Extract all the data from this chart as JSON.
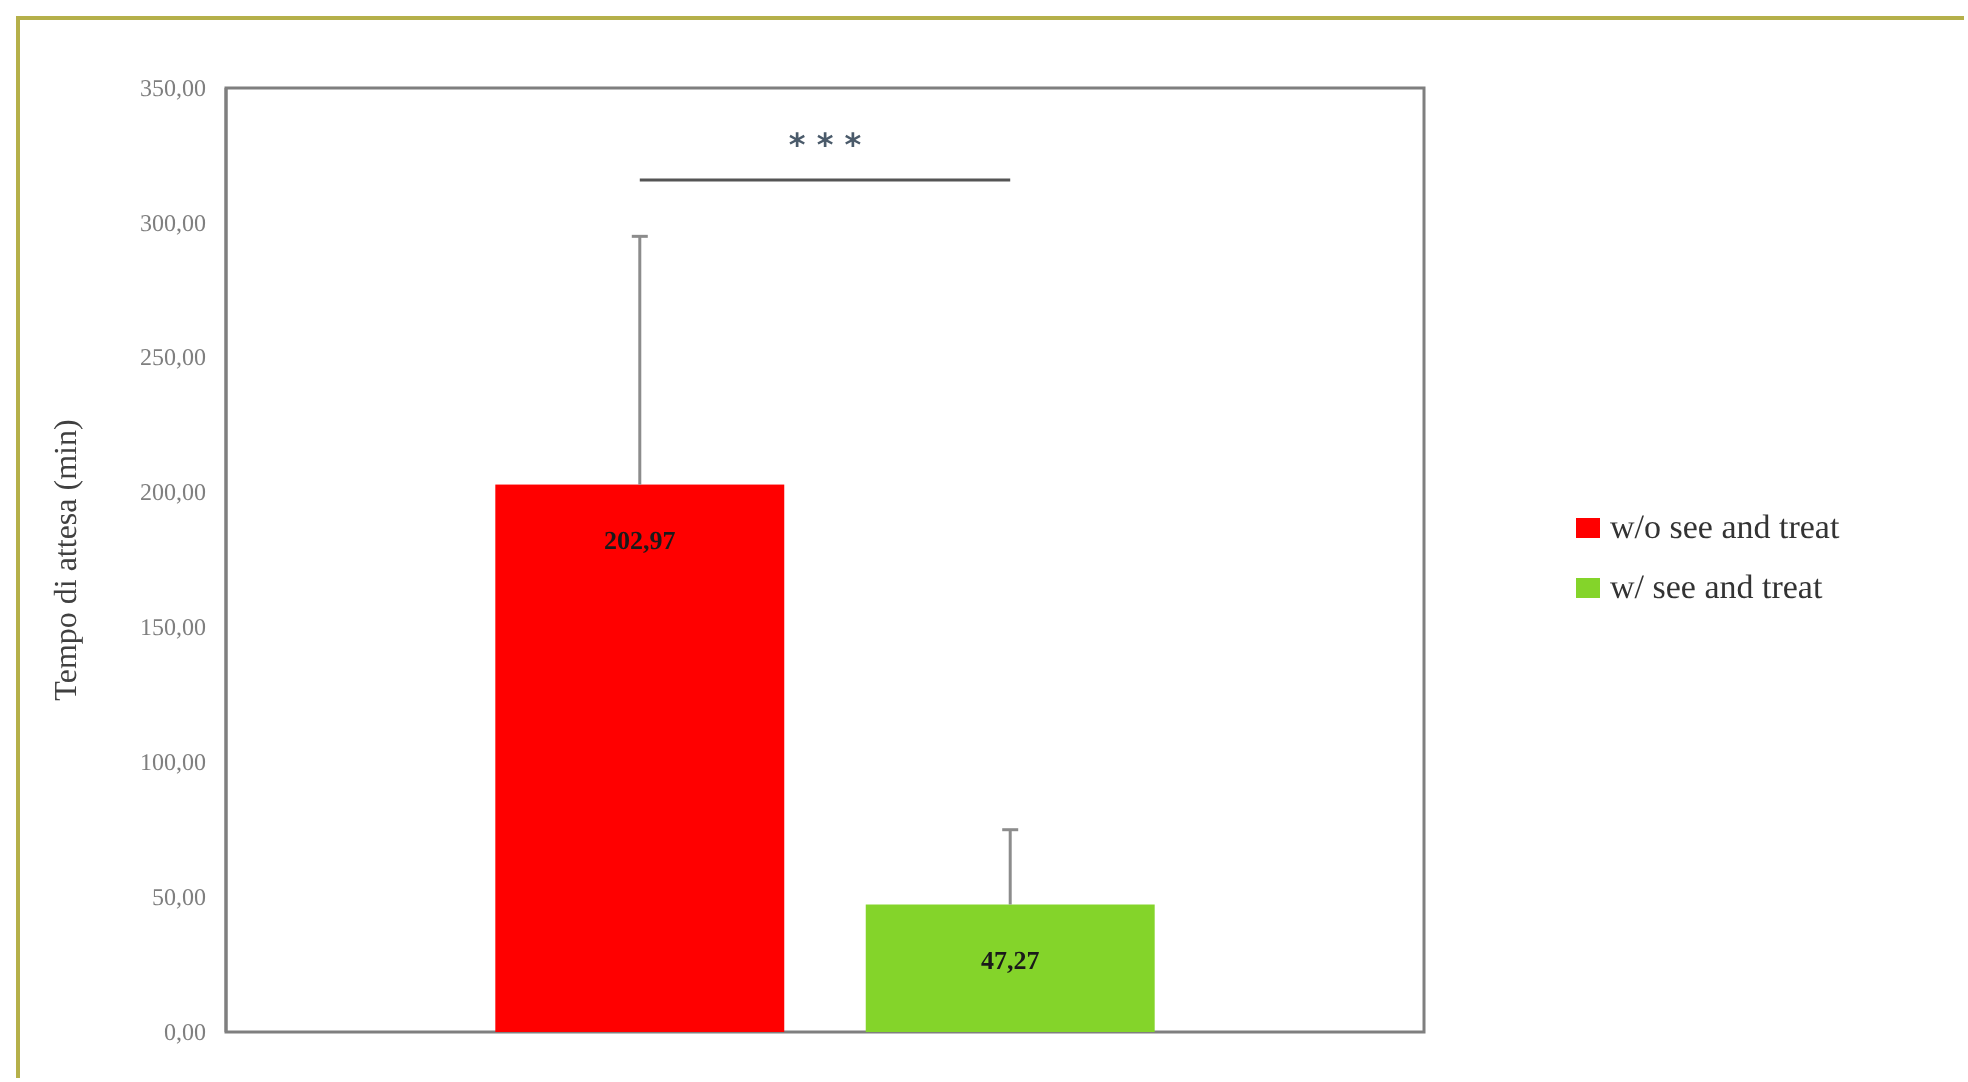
{
  "chart_data": {
    "type": "bar",
    "ylabel": "Tempo di attesa (min)",
    "categories": [
      null
    ],
    "series": [
      {
        "name": "w/o see and treat",
        "color": "#ff0000",
        "values": [
          202.97
        ],
        "errors": [
          [
            202.97,
            295
          ]
        ],
        "value_labels": [
          "202,97"
        ]
      },
      {
        "name": "w/ see and treat",
        "color": "#84d42a",
        "values": [
          47.27
        ],
        "errors": [
          [
            47.27,
            75
          ]
        ],
        "value_labels": [
          "47,27"
        ]
      }
    ],
    "ylim": [
      0,
      350
    ],
    "yticks": [
      {
        "value": 0,
        "label": "0,00"
      },
      {
        "value": 50,
        "label": "50,00"
      },
      {
        "value": 100,
        "label": "100,00"
      },
      {
        "value": 150,
        "label": "150,00"
      },
      {
        "value": 200,
        "label": "200,00"
      },
      {
        "value": 250,
        "label": "250,00"
      },
      {
        "value": 300,
        "label": "300,00"
      },
      {
        "value": 350,
        "label": "350,00"
      }
    ],
    "annotations": [
      "* * *"
    ],
    "grid": false,
    "legend": "right"
  }
}
